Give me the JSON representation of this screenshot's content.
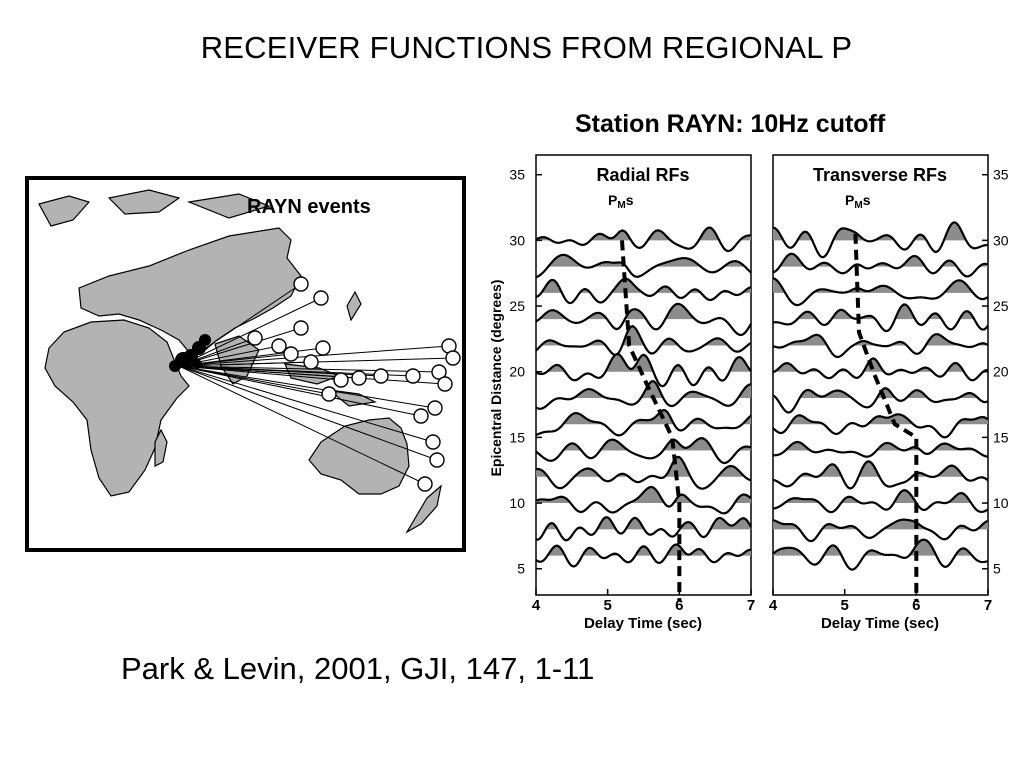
{
  "slide": {
    "title": "RECEIVER FUNCTIONS FROM REGIONAL  P",
    "citation": "Park & Levin,  2001, GJI, 147, 1-11"
  },
  "map": {
    "label": "RAYN events",
    "land_color": "#b3b3b3",
    "ray_color": "#000000"
  },
  "figure": {
    "title": "Station RAYN: 10Hz cutoff",
    "panels": [
      {
        "title": "Radial RFs",
        "phase_main": "P",
        "phase_sub": "M",
        "phase_tail": "s"
      },
      {
        "title": "Transverse RFs",
        "phase_main": "P",
        "phase_sub": "M",
        "phase_tail": "s"
      }
    ],
    "ylabel": "Epicentral Distance (degrees)",
    "xlabel": "Delay Time (sec)",
    "xticks": [
      "4",
      "5",
      "6",
      "7"
    ],
    "yticks": [
      "35",
      "30",
      "25",
      "20",
      "15",
      "10",
      "5"
    ],
    "fill_color": "#8c8c8c"
  },
  "chart_data": {
    "type": "line",
    "title": "Station RAYN: 10Hz cutoff",
    "xlabel": "Delay Time (sec)",
    "ylabel": "Epicentral Distance (degrees)",
    "xlim": [
      4,
      7
    ],
    "ylim": [
      3,
      36.5
    ],
    "trace_offsets_deg": [
      30,
      28,
      26,
      24,
      22,
      20,
      18,
      16,
      14,
      12,
      10,
      8,
      6
    ],
    "series": [
      {
        "name": "Radial RFs",
        "pms_moveout": [
          [
            5.2,
            30
          ],
          [
            5.3,
            22
          ],
          [
            5.55,
            19
          ],
          [
            5.9,
            15
          ],
          [
            6.0,
            10
          ],
          [
            6.0,
            2.5
          ]
        ]
      },
      {
        "name": "Transverse RFs",
        "pms_moveout": [
          [
            5.15,
            30.5
          ],
          [
            5.2,
            23
          ],
          [
            5.4,
            20
          ],
          [
            5.7,
            16
          ],
          [
            6.0,
            15
          ],
          [
            6.0,
            2.5
          ]
        ]
      }
    ],
    "grid": false
  }
}
